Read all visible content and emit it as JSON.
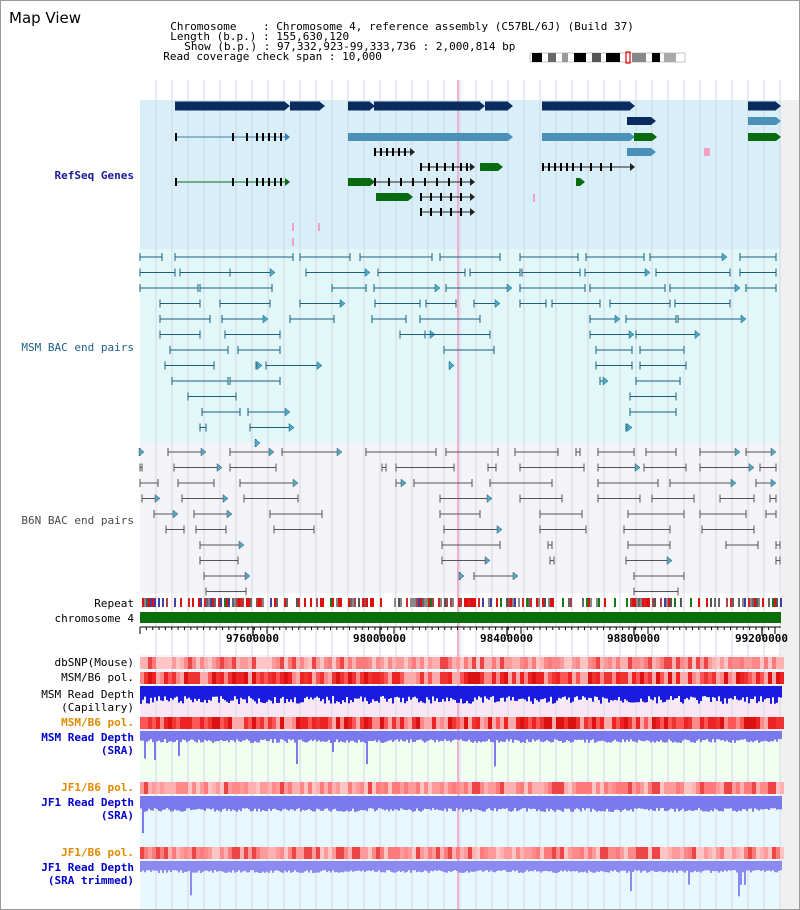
{
  "app": {
    "title": "Map View"
  },
  "header": {
    "rows": [
      {
        "label": "Chromosome",
        "value": "Chromosome 4, reference assembly (C57BL/6J) (Build 37)"
      },
      {
        "label": "Length (b.p.)",
        "value": "155,630,120"
      },
      {
        "label": "Show (b.p.)",
        "value": "97,332,923-99,333,736 : 2,000,814 bp"
      },
      {
        "label": "Read coverage check span",
        "value": "10,000"
      }
    ]
  },
  "tracks": {
    "refseq": "RefSeq Genes",
    "msm_bac": "MSM BAC end pairs",
    "b6n_bac": "B6N BAC end pairs",
    "repeat": "Repeat",
    "chromosome": "chromosome 4",
    "dbsnp": "dbSNP(Mouse)",
    "msm_b6_pol": "MSM/B6 pol.",
    "msm_depth_cap_1": "MSM Read Depth",
    "msm_depth_cap_2": "(Capillary)",
    "msm_b6_pol2": "MSM/B6 pol.",
    "msm_depth_sra_1": "MSM Read Depth",
    "msm_depth_sra_2": "(SRA)",
    "jf1_b6_pol": "JF1/B6 pol.",
    "jf1_depth_sra_1": "JF1 Read Depth",
    "jf1_depth_sra_2": "(SRA)",
    "jf1_b6_pol2": "JF1/B6 pol.",
    "jf1_depth_trim_1": "JF1 Read Depth",
    "jf1_depth_trim_2": "(SRA trimmed)"
  },
  "ruler": {
    "tick_labels": [
      "97600000",
      "98000000",
      "98400000",
      "98800000",
      "99200000"
    ]
  },
  "colors": {
    "refseq_bg": "#d8eef8",
    "msm_bg": "#e2f7f7",
    "b6n_bg": "#f4f4f8",
    "gene_navy": "#0b2a5e",
    "gene_steel": "#4a90b8",
    "gene_green": "#0a6a10",
    "chromosome_bar": "#0a6e0a",
    "depth_blue": "#1a1ae0",
    "depth_light": "#7a7aee",
    "pol_red": "#ee2222"
  }
}
